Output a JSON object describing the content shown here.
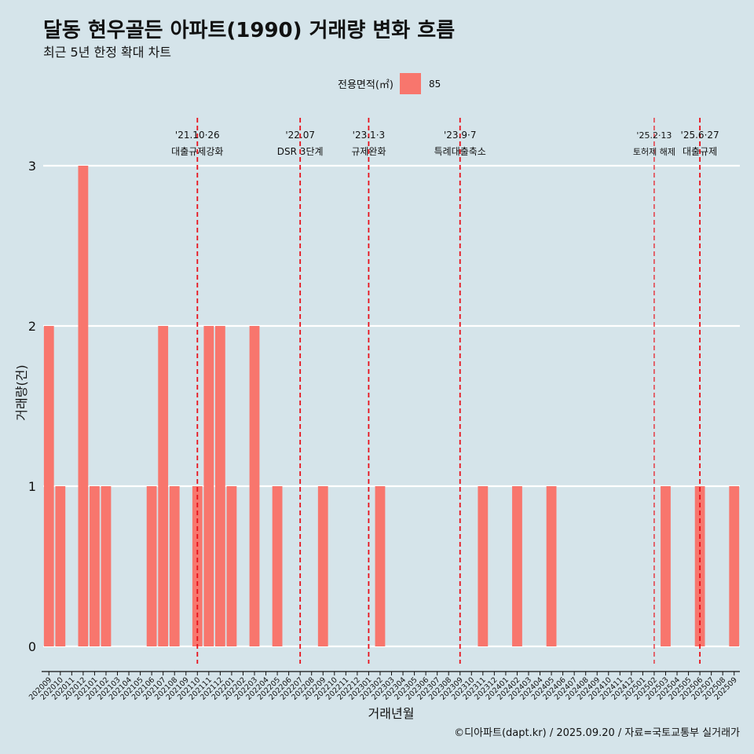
{
  "title": "달동 현우골든 아파트(1990) 거래량 변화 흐름",
  "subtitle": "최근 5년 한정 확대 차트",
  "legend": {
    "title": "전용면적(㎡)",
    "item": "85",
    "color": "#f8766d"
  },
  "caption": "©디아파트(dapt.kr) / 2025.09.20 / 자료=국토교통부 실거래가",
  "chart_data": {
    "type": "bar",
    "xlabel": "거래년월",
    "ylabel": "거래량(건)",
    "ylim": [
      0,
      3
    ],
    "yticks": [
      0,
      1,
      2,
      3
    ],
    "series": [
      {
        "name": "85",
        "color": "#f8766d"
      }
    ],
    "categories": [
      "202009",
      "202010",
      "202011",
      "202012",
      "202101",
      "202102",
      "202103",
      "202104",
      "202105",
      "202106",
      "202107",
      "202108",
      "202109",
      "202110",
      "202111",
      "202112",
      "202201",
      "202202",
      "202203",
      "202204",
      "202205",
      "202206",
      "202207",
      "202208",
      "202209",
      "202210",
      "202211",
      "202212",
      "202301",
      "202302",
      "202303",
      "202304",
      "202305",
      "202306",
      "202307",
      "202308",
      "202309",
      "202310",
      "202311",
      "202312",
      "202401",
      "202402",
      "202403",
      "202404",
      "202405",
      "202406",
      "202407",
      "202408",
      "202409",
      "202410",
      "202411",
      "202412",
      "202501",
      "202502",
      "202503",
      "202504",
      "202505",
      "202506",
      "202507",
      "202508",
      "202509"
    ],
    "values": [
      2,
      1,
      0,
      3,
      1,
      1,
      0,
      0,
      0,
      1,
      2,
      1,
      0,
      1,
      2,
      2,
      1,
      0,
      2,
      0,
      1,
      0,
      0,
      0,
      1,
      0,
      0,
      0,
      0,
      1,
      0,
      0,
      0,
      0,
      0,
      0,
      0,
      0,
      1,
      0,
      0,
      1,
      0,
      0,
      1,
      0,
      0,
      0,
      0,
      0,
      0,
      0,
      0,
      0,
      1,
      0,
      0,
      1,
      0,
      0,
      1
    ],
    "annotations": [
      {
        "at": "202110",
        "date": "'21.10·26",
        "label": "대출규제강화",
        "small": false
      },
      {
        "at": "202207",
        "date": "'22.07",
        "label": "DSR 3단계",
        "small": false
      },
      {
        "at": "202301",
        "date": "'23.1·3",
        "label": "규제완화",
        "small": false
      },
      {
        "at": "202309",
        "date": "'23.9·7",
        "label": "특례대출축소",
        "small": false
      },
      {
        "at": "202502",
        "date": "'25.2·13",
        "label": "토허제 해제",
        "small": true
      },
      {
        "at": "202506",
        "date": "'25.6·27",
        "label": "대출규제",
        "small": false
      }
    ]
  }
}
